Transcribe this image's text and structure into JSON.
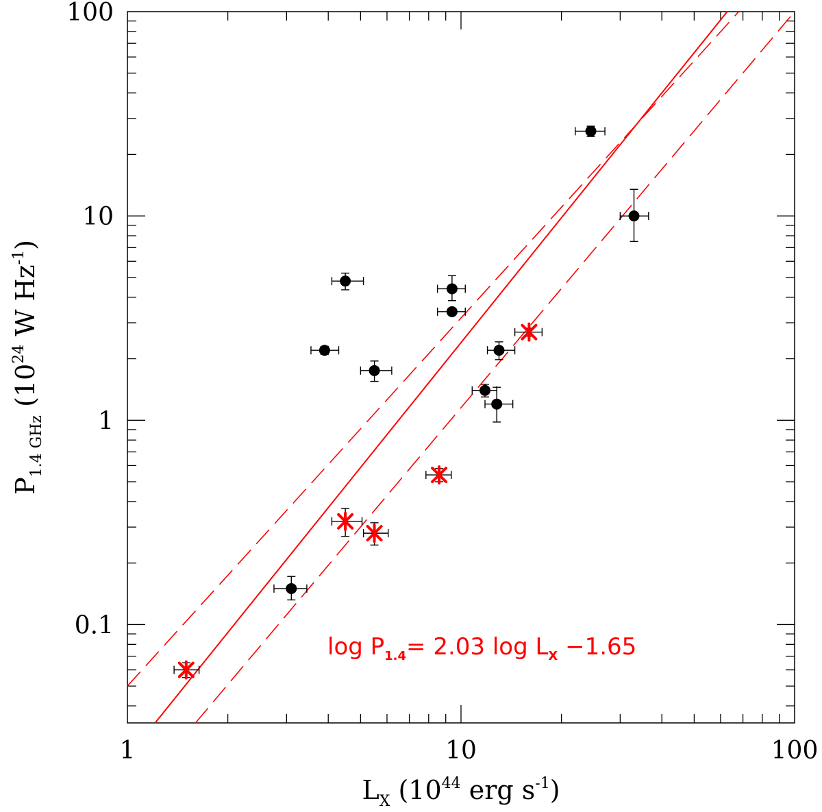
{
  "chart_data": {
    "type": "scatter",
    "xscale": "log",
    "yscale": "log",
    "xlim": [
      1,
      100
    ],
    "ylim": [
      0.033,
      100
    ],
    "x_ticks": [
      {
        "value": 1,
        "label": "1"
      },
      {
        "value": 10,
        "label": "10"
      },
      {
        "value": 100,
        "label": "100"
      }
    ],
    "y_ticks": [
      {
        "value": 0.1,
        "label": "0.1"
      },
      {
        "value": 1,
        "label": "1"
      },
      {
        "value": 10,
        "label": "10"
      },
      {
        "value": 100,
        "label": "100"
      }
    ],
    "xlabel": {
      "main": "L",
      "sub": "X",
      "rest1": " (10",
      "sup": "44",
      "rest2": " erg s",
      "sup2": "-1",
      "rest3": ")"
    },
    "ylabel": {
      "main": "P",
      "sub": "1.4 GHz",
      "rest1": " (10",
      "sup": "24",
      "rest2": " W Hz",
      "sup2": "-1",
      "rest3": ")"
    },
    "annotation": {
      "part1": "log P",
      "sub1": "1.4",
      "part2": "= 2.03 log L",
      "sub2": "X",
      "part3": " −1.65",
      "color": "#ff0000"
    },
    "fit": {
      "slope": 2.03,
      "intercept": -1.65,
      "color": "#ff0000"
    },
    "confidence_bands": [
      {
        "name": "upper",
        "x": [
          1,
          68
        ],
        "y": [
          0.05,
          100
        ],
        "style": "dashed"
      },
      {
        "name": "lower",
        "x": [
          1.6,
          100
        ],
        "y": [
          0.033,
          100
        ],
        "style": "dashed"
      }
    ],
    "series": [
      {
        "name": "black-points",
        "marker": "circle",
        "color": "#000000",
        "points": [
          {
            "x": 3.1,
            "y": 0.15,
            "xerr": [
              0.35,
              0.35
            ],
            "yerr": [
              0.018,
              0.022
            ]
          },
          {
            "x": 3.9,
            "y": 2.2,
            "xerr": [
              0.35,
              0.4
            ],
            "yerr": [
              0.1,
              0.1
            ]
          },
          {
            "x": 4.5,
            "y": 4.8,
            "xerr": [
              0.4,
              0.6
            ],
            "yerr": [
              0.45,
              0.45
            ]
          },
          {
            "x": 5.5,
            "y": 1.75,
            "xerr": [
              0.5,
              0.7
            ],
            "yerr": [
              0.2,
              0.2
            ]
          },
          {
            "x": 9.4,
            "y": 4.4,
            "xerr": [
              0.9,
              0.9
            ],
            "yerr": [
              0.55,
              0.7
            ]
          },
          {
            "x": 9.4,
            "y": 3.4,
            "xerr": [
              0.9,
              0.9
            ],
            "yerr": [
              0.12,
              0.12
            ]
          },
          {
            "x": 11.8,
            "y": 1.4,
            "xerr": [
              1.0,
              1.0
            ],
            "yerr": [
              0.1,
              0.1
            ]
          },
          {
            "x": 12.8,
            "y": 1.2,
            "xerr": [
              1.0,
              1.5
            ],
            "yerr": [
              0.22,
              0.25
            ]
          },
          {
            "x": 13.0,
            "y": 2.2,
            "xerr": [
              1.0,
              1.5
            ],
            "yerr": [
              0.22,
              0.22
            ]
          },
          {
            "x": 24.5,
            "y": 26.0,
            "xerr": [
              2.5,
              2.5
            ],
            "yerr": [
              1.5,
              1.5
            ]
          },
          {
            "x": 33.0,
            "y": 10.0,
            "xerr": [
              3.0,
              3.5
            ],
            "yerr": [
              2.5,
              3.5
            ]
          }
        ]
      },
      {
        "name": "red-points",
        "marker": "asterisk",
        "color": "#ff0000",
        "points": [
          {
            "x": 1.5,
            "y": 0.06,
            "xerr": [
              0.12,
              0.14
            ],
            "yerr": [
              0.005,
              0.005
            ]
          },
          {
            "x": 4.5,
            "y": 0.32,
            "xerr": [
              0.4,
              0.55
            ],
            "yerr": [
              0.05,
              0.05
            ]
          },
          {
            "x": 5.5,
            "y": 0.28,
            "xerr": [
              0.4,
              0.55
            ],
            "yerr": [
              0.035,
              0.035
            ]
          },
          {
            "x": 8.6,
            "y": 0.54,
            "xerr": [
              0.75,
              0.75
            ],
            "yerr": [
              0.04,
              0.04
            ]
          },
          {
            "x": 16.0,
            "y": 2.7,
            "xerr": [
              1.5,
              1.5
            ],
            "yerr": [
              0.12,
              0.12
            ]
          }
        ]
      }
    ]
  }
}
